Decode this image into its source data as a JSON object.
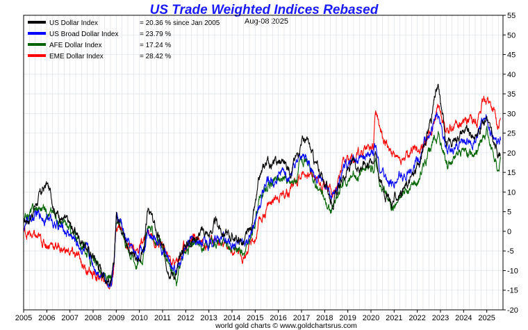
{
  "chart_data": {
    "type": "line",
    "title": "US Trade Weighted Indices Rebased",
    "date_label": "Aug-08  2025",
    "footer": "world gold charts © www.goldchartsrus.com",
    "xlabel": "",
    "ylabel": "",
    "xlim": [
      2005.0,
      2025.7
    ],
    "ylim": [
      -20,
      55
    ],
    "grid": true,
    "legend_position": "top-left",
    "x_ticks": [
      "2005",
      "2006",
      "2007",
      "2008",
      "2009",
      "2010",
      "2011",
      "2012",
      "2013",
      "2014",
      "2015",
      "2016",
      "2017",
      "2018",
      "2019",
      "2020",
      "2021",
      "2022",
      "2023",
      "2024",
      "2025"
    ],
    "y_ticks": [
      -20,
      -15,
      -10,
      -5,
      0,
      5,
      10,
      15,
      20,
      25,
      30,
      35,
      40,
      45,
      50,
      55
    ],
    "series": [
      {
        "name": "US Dollar Index",
        "note": "= 20.36 % since Jan 2005",
        "color": "#000000",
        "x": [
          2005.0,
          2005.3,
          2005.6,
          2005.9,
          2006.0,
          2006.2,
          2006.4,
          2006.6,
          2006.9,
          2007.2,
          2007.5,
          2007.8,
          2008.0,
          2008.3,
          2008.6,
          2008.8,
          2008.9,
          2009.0,
          2009.2,
          2009.4,
          2009.7,
          2009.9,
          2010.2,
          2010.4,
          2010.6,
          2010.9,
          2011.2,
          2011.4,
          2011.6,
          2011.9,
          2012.2,
          2012.5,
          2012.8,
          2013.0,
          2013.3,
          2013.6,
          2013.9,
          2014.2,
          2014.5,
          2014.8,
          2015.0,
          2015.2,
          2015.5,
          2015.9,
          2016.2,
          2016.5,
          2016.8,
          2017.0,
          2017.3,
          2017.6,
          2017.9,
          2018.1,
          2018.3,
          2018.5,
          2018.8,
          2019.2,
          2019.5,
          2019.9,
          2020.1,
          2020.2,
          2020.4,
          2020.7,
          2020.9,
          2021.0,
          2021.3,
          2021.6,
          2021.9,
          2022.1,
          2022.3,
          2022.6,
          2022.8,
          2022.9,
          2023.1,
          2023.3,
          2023.6,
          2023.8,
          2024.0,
          2024.3,
          2024.6,
          2024.8,
          2025.0,
          2025.1,
          2025.3,
          2025.5,
          2025.6
        ],
        "y": [
          2,
          4,
          8,
          11,
          12,
          9,
          5,
          4,
          2,
          0,
          -2,
          -5,
          -6,
          -9,
          -12,
          -13,
          -9,
          4,
          3,
          -2,
          -6,
          -8,
          -4,
          6,
          2,
          -3,
          -8,
          -10,
          -11,
          -4,
          -2,
          -1,
          0,
          -1,
          2,
          0,
          -1,
          -2,
          -3,
          0,
          6,
          13,
          18,
          17,
          18,
          16,
          19,
          24,
          22,
          17,
          14,
          11,
          8,
          9,
          14,
          17,
          17,
          18,
          19,
          20,
          13,
          9,
          7,
          8,
          10,
          12,
          15,
          17,
          22,
          29,
          35,
          36,
          29,
          22,
          23,
          25,
          26,
          24,
          25,
          28,
          30,
          27,
          22,
          20,
          21
        ]
      },
      {
        "name": "US Broad Dollar Index",
        "note": "= 23.79 %",
        "color": "#0000ff",
        "x": [
          2005.0,
          2005.3,
          2005.6,
          2005.9,
          2006.2,
          2006.5,
          2006.9,
          2007.2,
          2007.5,
          2007.8,
          2008.0,
          2008.3,
          2008.6,
          2008.8,
          2008.9,
          2009.0,
          2009.2,
          2009.4,
          2009.7,
          2009.9,
          2010.2,
          2010.4,
          2010.6,
          2010.9,
          2011.2,
          2011.4,
          2011.6,
          2011.9,
          2012.2,
          2012.5,
          2012.8,
          2013.0,
          2013.3,
          2013.6,
          2013.9,
          2014.2,
          2014.5,
          2014.8,
          2015.0,
          2015.2,
          2015.5,
          2015.9,
          2016.2,
          2016.5,
          2016.8,
          2017.0,
          2017.3,
          2017.6,
          2017.9,
          2018.1,
          2018.3,
          2018.5,
          2018.8,
          2019.2,
          2019.5,
          2019.9,
          2020.1,
          2020.2,
          2020.4,
          2020.7,
          2020.9,
          2021.0,
          2021.3,
          2021.6,
          2021.9,
          2022.1,
          2022.3,
          2022.6,
          2022.8,
          2022.9,
          2023.1,
          2023.3,
          2023.6,
          2023.8,
          2024.0,
          2024.3,
          2024.6,
          2024.8,
          2025.0,
          2025.1,
          2025.3,
          2025.5,
          2025.6
        ],
        "y": [
          1,
          3,
          4,
          4,
          3,
          1,
          0,
          -2,
          -4,
          -6,
          -8,
          -10,
          -12,
          -13,
          -8,
          3,
          2,
          -2,
          -5,
          -6,
          -4,
          1,
          -1,
          -4,
          -7,
          -9,
          -10,
          -5,
          -3,
          -2,
          -2,
          -3,
          -1,
          -2,
          -3,
          -3,
          -4,
          -2,
          2,
          7,
          13,
          14,
          15,
          14,
          16,
          19,
          18,
          14,
          12,
          10,
          8,
          10,
          15,
          18,
          18,
          19,
          20,
          22,
          16,
          13,
          12,
          13,
          14,
          15,
          17,
          18,
          22,
          25,
          30,
          29,
          24,
          20,
          21,
          23,
          24,
          22,
          24,
          27,
          29,
          27,
          24,
          22,
          23
        ]
      },
      {
        "name": "AFE Dollar Index",
        "note": "= 17.24 %",
        "color": "#006400",
        "x": [
          2005.0,
          2005.3,
          2005.6,
          2005.9,
          2006.2,
          2006.5,
          2006.9,
          2007.2,
          2007.5,
          2007.8,
          2008.0,
          2008.3,
          2008.6,
          2008.8,
          2008.9,
          2009.0,
          2009.2,
          2009.4,
          2009.7,
          2009.9,
          2010.2,
          2010.4,
          2010.6,
          2010.9,
          2011.2,
          2011.4,
          2011.6,
          2011.9,
          2012.2,
          2012.5,
          2012.8,
          2013.0,
          2013.3,
          2013.6,
          2013.9,
          2014.2,
          2014.5,
          2014.8,
          2015.0,
          2015.2,
          2015.5,
          2015.9,
          2016.2,
          2016.5,
          2016.8,
          2017.0,
          2017.3,
          2017.6,
          2017.9,
          2018.1,
          2018.3,
          2018.5,
          2018.8,
          2019.2,
          2019.5,
          2019.9,
          2020.1,
          2020.2,
          2020.4,
          2020.7,
          2020.9,
          2021.0,
          2021.3,
          2021.6,
          2021.9,
          2022.1,
          2022.3,
          2022.6,
          2022.8,
          2022.9,
          2023.1,
          2023.3,
          2023.6,
          2023.8,
          2024.0,
          2024.3,
          2024.6,
          2024.8,
          2025.0,
          2025.1,
          2025.3,
          2025.5,
          2025.6
        ],
        "y": [
          2,
          5,
          6,
          6,
          5,
          3,
          1,
          -1,
          -3,
          -6,
          -8,
          -10,
          -12,
          -13,
          -8,
          4,
          3,
          -2,
          -6,
          -8,
          -5,
          2,
          -1,
          -4,
          -8,
          -10,
          -13,
          -6,
          -4,
          -3,
          -4,
          -4,
          -2,
          -3,
          -4,
          -4,
          -5,
          -3,
          3,
          9,
          11,
          13,
          14,
          12,
          14,
          18,
          16,
          12,
          9,
          7,
          5,
          8,
          12,
          14,
          15,
          16,
          16,
          18,
          12,
          9,
          7,
          7,
          9,
          10,
          12,
          14,
          17,
          21,
          24,
          25,
          20,
          17,
          18,
          20,
          21,
          20,
          21,
          24,
          26,
          23,
          19,
          16,
          18
        ]
      },
      {
        "name": "EME Dollar Index",
        "note": "= 28.42 %",
        "color": "#ff0000",
        "x": [
          2005.0,
          2005.3,
          2005.6,
          2005.9,
          2006.2,
          2006.5,
          2006.9,
          2007.2,
          2007.5,
          2007.8,
          2008.0,
          2008.3,
          2008.6,
          2008.8,
          2008.9,
          2009.0,
          2009.2,
          2009.4,
          2009.7,
          2009.9,
          2010.2,
          2010.4,
          2010.6,
          2010.9,
          2011.2,
          2011.4,
          2011.6,
          2011.9,
          2012.2,
          2012.5,
          2012.8,
          2013.0,
          2013.3,
          2013.6,
          2013.9,
          2014.2,
          2014.5,
          2014.8,
          2015.0,
          2015.2,
          2015.5,
          2015.9,
          2016.2,
          2016.5,
          2016.8,
          2017.0,
          2017.3,
          2017.6,
          2017.9,
          2018.1,
          2018.3,
          2018.5,
          2018.8,
          2019.2,
          2019.5,
          2019.9,
          2020.1,
          2020.2,
          2020.4,
          2020.7,
          2020.9,
          2021.0,
          2021.3,
          2021.6,
          2021.9,
          2022.1,
          2022.3,
          2022.6,
          2022.8,
          2022.9,
          2023.1,
          2023.3,
          2023.6,
          2023.8,
          2024.0,
          2024.3,
          2024.6,
          2024.8,
          2025.0,
          2025.1,
          2025.3,
          2025.5,
          2025.6
        ],
        "y": [
          0,
          -1,
          -2,
          -3,
          -3,
          -4,
          -5,
          -6,
          -8,
          -10,
          -11,
          -12,
          -13,
          -13,
          -8,
          2,
          1,
          -2,
          -4,
          -5,
          -3,
          0,
          -2,
          -4,
          -6,
          -8,
          -8,
          -4,
          -2,
          -1,
          -2,
          -3,
          -2,
          -4,
          -5,
          -5,
          -6,
          -4,
          -2,
          2,
          6,
          9,
          10,
          11,
          13,
          15,
          15,
          14,
          12,
          12,
          10,
          11,
          16,
          19,
          20,
          21,
          22,
          32,
          26,
          22,
          20,
          19,
          18,
          19,
          21,
          21,
          23,
          25,
          30,
          32,
          28,
          26,
          27,
          28,
          29,
          28,
          29,
          32,
          34,
          33,
          30,
          27,
          28
        ]
      }
    ]
  }
}
